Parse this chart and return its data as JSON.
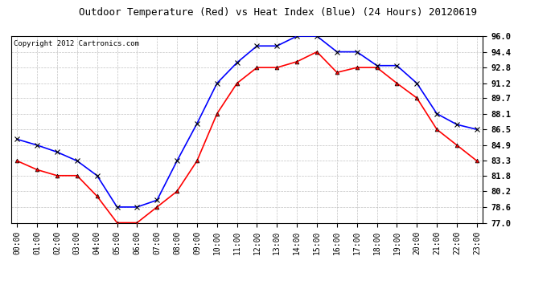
{
  "title": "Outdoor Temperature (Red) vs Heat Index (Blue) (24 Hours) 20120619",
  "copyright": "Copyright 2012 Cartronics.com",
  "hours": [
    0,
    1,
    2,
    3,
    4,
    5,
    6,
    7,
    8,
    9,
    10,
    11,
    12,
    13,
    14,
    15,
    16,
    17,
    18,
    19,
    20,
    21,
    22,
    23
  ],
  "xlabels": [
    "00:00",
    "01:00",
    "02:00",
    "03:00",
    "04:00",
    "05:00",
    "06:00",
    "07:00",
    "08:00",
    "09:00",
    "10:00",
    "11:00",
    "12:00",
    "13:00",
    "14:00",
    "15:00",
    "16:00",
    "17:00",
    "18:00",
    "19:00",
    "20:00",
    "21:00",
    "22:00",
    "23:00"
  ],
  "red_temp": [
    83.3,
    82.4,
    81.8,
    81.8,
    79.7,
    77.0,
    77.0,
    78.6,
    80.2,
    83.3,
    88.1,
    91.2,
    92.8,
    92.8,
    93.4,
    94.4,
    92.3,
    92.8,
    92.8,
    91.2,
    89.7,
    86.5,
    84.9,
    83.3
  ],
  "blue_hi": [
    85.5,
    84.9,
    84.2,
    83.3,
    81.8,
    78.6,
    78.6,
    79.3,
    83.3,
    87.1,
    91.2,
    93.3,
    95.0,
    95.0,
    96.0,
    96.0,
    94.4,
    94.4,
    93.0,
    93.0,
    91.2,
    88.1,
    87.0,
    86.5
  ],
  "ylim_min": 77.0,
  "ylim_max": 96.0,
  "yticks": [
    77.0,
    78.6,
    80.2,
    81.8,
    83.3,
    84.9,
    86.5,
    88.1,
    89.7,
    91.2,
    92.8,
    94.4,
    96.0
  ],
  "red_color": "red",
  "blue_color": "blue",
  "bg_color": "white",
  "grid_color": "#bbbbbb",
  "title_fontsize": 9,
  "copyright_fontsize": 6.5,
  "tick_fontsize": 7,
  "ytick_fontsize": 7.5
}
